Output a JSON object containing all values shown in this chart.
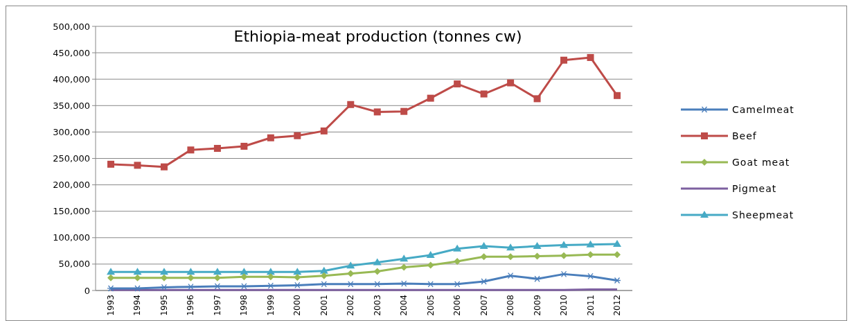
{
  "chart_data": {
    "type": "line",
    "title": "Ethiopia-meat production (tonnes cw)",
    "categories": [
      "1993",
      "1994",
      "1995",
      "1996",
      "1997",
      "1998",
      "1999",
      "2000",
      "2001",
      "2002",
      "2003",
      "2004",
      "2005",
      "2006",
      "2007",
      "2008",
      "2009",
      "2010",
      "2011",
      "2012"
    ],
    "series": [
      {
        "name": "Camelmeat",
        "color": "#4a7ebb",
        "marker": "cross",
        "values": [
          4000,
          4000,
          6000,
          7000,
          8000,
          8000,
          9000,
          10000,
          12000,
          12000,
          12000,
          13000,
          12000,
          12000,
          17000,
          28000,
          22000,
          31000,
          27000,
          19000
        ]
      },
      {
        "name": "Beef",
        "color": "#be4b48",
        "marker": "square",
        "values": [
          239000,
          237000,
          234000,
          266000,
          269000,
          273000,
          289000,
          293000,
          302000,
          352000,
          338000,
          339000,
          364000,
          391000,
          372000,
          393000,
          363000,
          436000,
          441000,
          369000
        ]
      },
      {
        "name": "Goat meat",
        "color": "#98b954",
        "marker": "diamond",
        "values": [
          24000,
          24000,
          24000,
          24000,
          24000,
          26000,
          26000,
          25000,
          28000,
          32000,
          36000,
          44000,
          48000,
          55000,
          64000,
          64000,
          65000,
          66000,
          68000,
          68000
        ]
      },
      {
        "name": "Pigmeat",
        "color": "#7d60a0",
        "marker": "none",
        "values": [
          1000,
          1000,
          1000,
          1000,
          1000,
          1000,
          1000,
          1000,
          1000,
          1000,
          1000,
          1000,
          1000,
          1000,
          1000,
          1000,
          1000,
          1000,
          2000,
          2000
        ]
      },
      {
        "name": "Sheepmeat",
        "color": "#46aac5",
        "marker": "triangle",
        "values": [
          35000,
          35000,
          35000,
          35000,
          35000,
          35000,
          35000,
          35000,
          37000,
          47000,
          53000,
          60000,
          67000,
          79000,
          84000,
          81000,
          84000,
          86000,
          87000,
          88000
        ]
      }
    ],
    "ylim": [
      0,
      500000
    ],
    "yticks": [
      {
        "value": 0,
        "label": "0"
      },
      {
        "value": 50000,
        "label": "50,000"
      },
      {
        "value": 100000,
        "label": "100,000"
      },
      {
        "value": 150000,
        "label": "150,000"
      },
      {
        "value": 200000,
        "label": "200,000"
      },
      {
        "value": 250000,
        "label": "250,000"
      },
      {
        "value": 300000,
        "label": "300,000"
      },
      {
        "value": 350000,
        "label": "350,000"
      },
      {
        "value": 400000,
        "label": "400,000"
      },
      {
        "value": 450000,
        "label": "450,000"
      },
      {
        "value": 500000,
        "label": "500,000"
      }
    ],
    "grid": "y",
    "legend": "right",
    "line_style": "solid"
  }
}
